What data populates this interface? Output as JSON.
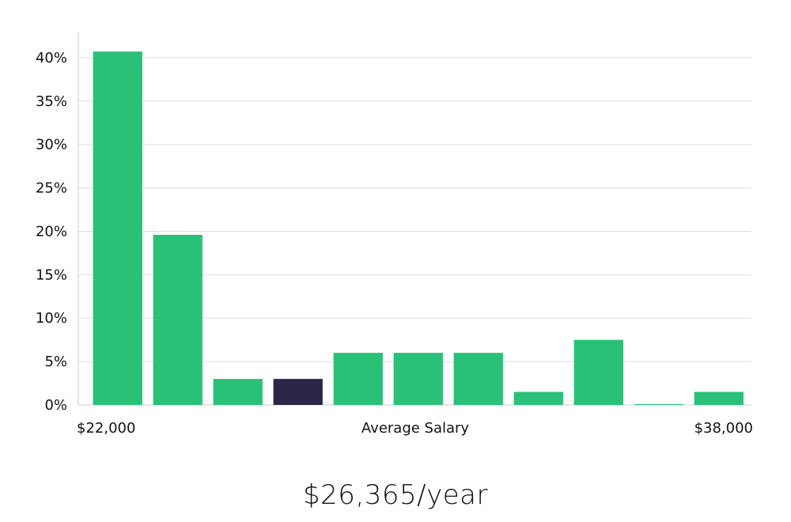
{
  "chart_data": {
    "type": "bar",
    "values": [
      40.7,
      19.6,
      3.0,
      3.0,
      6.0,
      6.0,
      6.0,
      1.5,
      7.5,
      0.1,
      1.5
    ],
    "highlight_index": 3,
    "ylim": [
      0,
      43
    ],
    "yticks": [
      0,
      5,
      10,
      15,
      20,
      25,
      30,
      35,
      40
    ],
    "ytick_labels": [
      "0%",
      "5%",
      "10%",
      "15%",
      "20%",
      "25%",
      "30%",
      "35%",
      "40%"
    ],
    "xlabel_left": "$22,000",
    "xlabel": "Average Salary",
    "xlabel_right": "$38,000",
    "grid": true,
    "colors": {
      "bar": "#2ac077",
      "highlight": "#2b2749",
      "grid": "#dddddd",
      "axis": "#cccccc"
    }
  },
  "headline": "$26,365/year"
}
